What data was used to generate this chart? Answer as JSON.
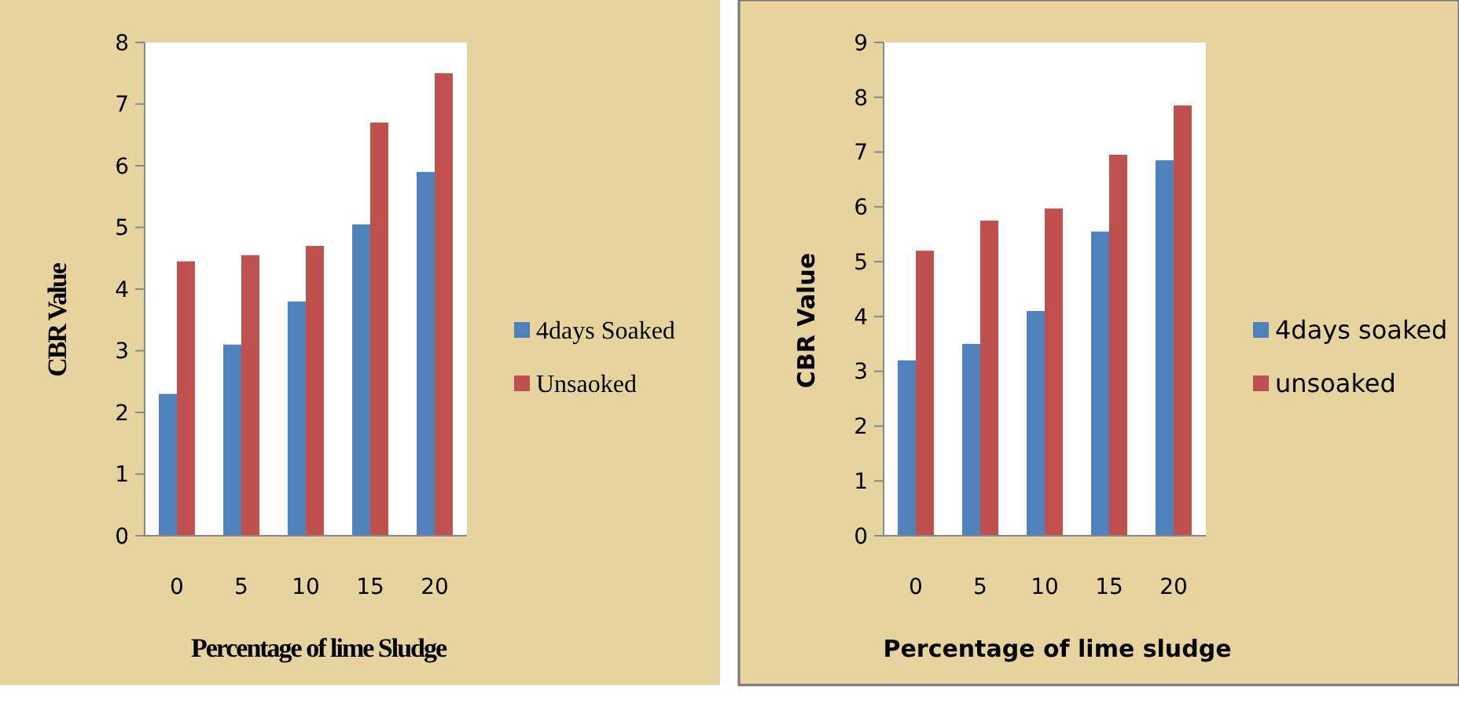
{
  "chart_data": [
    {
      "type": "bar",
      "xlabel": "Percentage of lime Sludge",
      "ylabel": "CBR Value",
      "categories": [
        "0",
        "5",
        "10",
        "15",
        "20"
      ],
      "ylim": [
        0,
        8
      ],
      "yticks": [
        0,
        1,
        2,
        3,
        4,
        5,
        6,
        7,
        8
      ],
      "grid": false,
      "legend": "right",
      "series": [
        {
          "name": "4days Soaked",
          "color": "#4f81bd",
          "values": [
            2.3,
            3.1,
            3.8,
            5.05,
            5.9
          ]
        },
        {
          "name": "Unsaoked",
          "color": "#c0504d",
          "values": [
            4.45,
            4.55,
            4.7,
            6.7,
            7.5
          ]
        }
      ]
    },
    {
      "type": "bar",
      "xlabel": "Percentage of lime sludge",
      "ylabel": "CBR Value",
      "categories": [
        "0",
        "5",
        "10",
        "15",
        "20"
      ],
      "ylim": [
        0,
        9
      ],
      "yticks": [
        0,
        1,
        2,
        3,
        4,
        5,
        6,
        7,
        8,
        9
      ],
      "grid": false,
      "legend": "right",
      "series": [
        {
          "name": "4days soaked",
          "color": "#4f81bd",
          "values": [
            3.2,
            3.5,
            4.1,
            5.55,
            6.85
          ]
        },
        {
          "name": "unsoaked",
          "color": "#c0504d",
          "values": [
            5.2,
            5.75,
            5.97,
            6.95,
            7.85
          ]
        }
      ]
    }
  ]
}
